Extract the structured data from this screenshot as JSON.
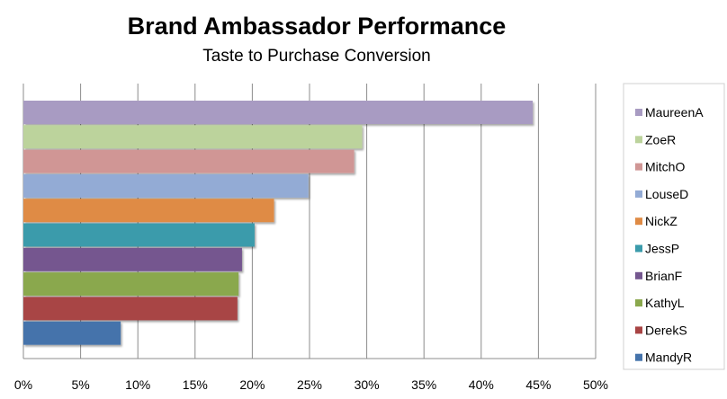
{
  "chart_data": {
    "type": "bar",
    "orientation": "horizontal",
    "title": "Brand Ambassador Performance",
    "subtitle": "Taste to Purchase Conversion",
    "xlabel": "",
    "ylabel": "",
    "xlim": [
      0,
      50
    ],
    "x_ticks": [
      "0%",
      "5%",
      "10%",
      "15%",
      "20%",
      "25%",
      "30%",
      "35%",
      "40%",
      "45%",
      "50%"
    ],
    "grid": "vertical",
    "legend_position": "right",
    "series": [
      {
        "name": "MaureenA",
        "value": 44.5,
        "color": "#a89bc2"
      },
      {
        "name": "ZoeR",
        "value": 29.6,
        "color": "#bcd39c"
      },
      {
        "name": "MitchO",
        "value": 28.9,
        "color": "#d09695"
      },
      {
        "name": "LouseD",
        "value": 24.9,
        "color": "#93abd5"
      },
      {
        "name": "NickZ",
        "value": 21.9,
        "color": "#df8b45"
      },
      {
        "name": "JessP",
        "value": 20.2,
        "color": "#3b9bab"
      },
      {
        "name": "BrianF",
        "value": 19.1,
        "color": "#74578f"
      },
      {
        "name": "KathyL",
        "value": 18.8,
        "color": "#8aa84d"
      },
      {
        "name": "DerekS",
        "value": 18.7,
        "color": "#a84444"
      },
      {
        "name": "MandyR",
        "value": 8.5,
        "color": "#4573ab"
      }
    ]
  }
}
